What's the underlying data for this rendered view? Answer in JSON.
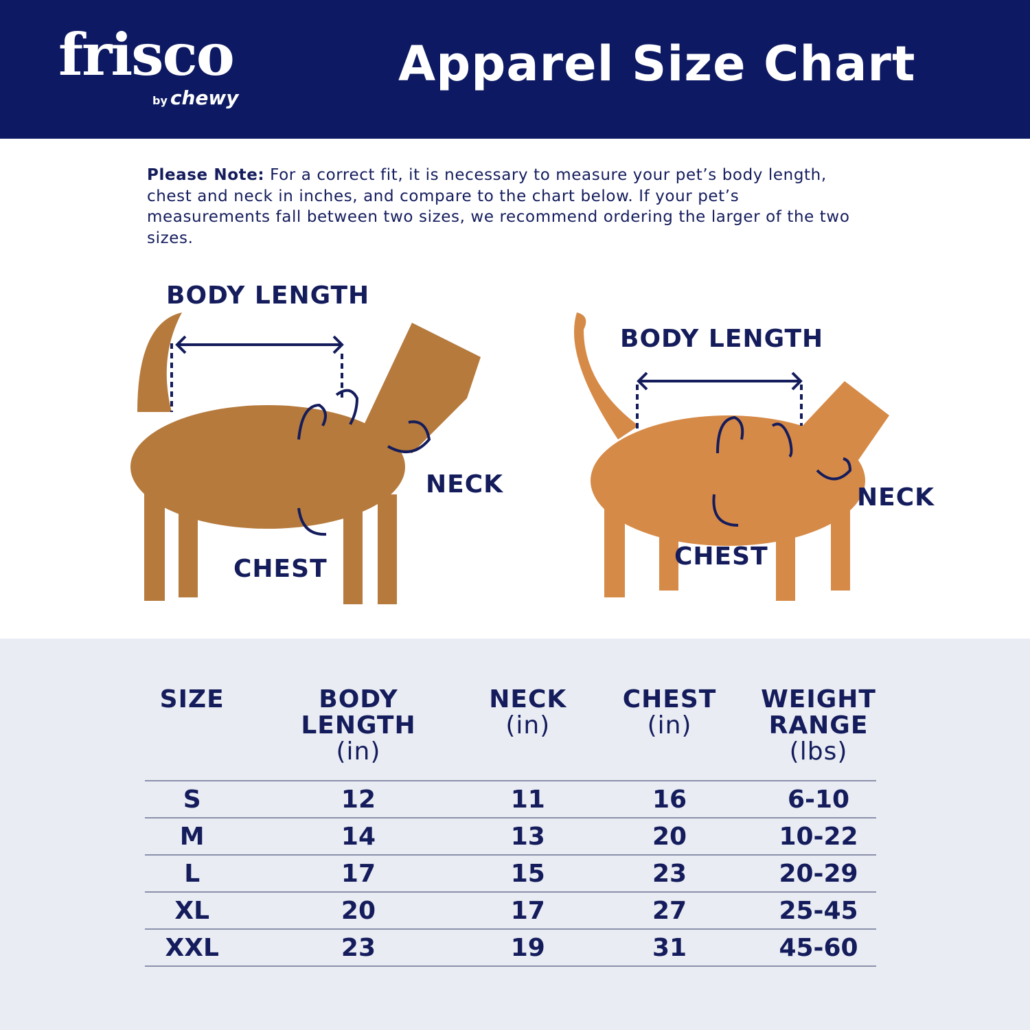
{
  "header": {
    "brand": "frisco",
    "sub_brand_prefix": "by",
    "sub_brand": "chewy",
    "title": "Apparel Size Chart",
    "bg_color": "#0d1a63"
  },
  "note": {
    "label": "Please Note:",
    "text": " For a correct fit, it is necessary to measure your pet’s body length, chest and neck in inches, and compare to the chart below. If your pet’s measurements fall between two sizes, we recommend ordering the larger of the two sizes."
  },
  "dog": {
    "body_length": "BODY LENGTH",
    "neck": "NECK",
    "chest": "CHEST"
  },
  "cat": {
    "body_length": "BODY LENGTH",
    "neck": "NECK",
    "chest": "CHEST"
  },
  "table": {
    "headers": [
      {
        "title": "SIZE",
        "unit": ""
      },
      {
        "title": "BODY LENGTH",
        "unit": "(in)"
      },
      {
        "title": "NECK",
        "unit": "(in)"
      },
      {
        "title": "CHEST",
        "unit": "(in)"
      },
      {
        "title": "WEIGHT RANGE",
        "unit": "(lbs)"
      }
    ],
    "rows": [
      [
        "S",
        "12",
        "11",
        "16",
        "6-10"
      ],
      [
        "M",
        "14",
        "13",
        "20",
        "10-22"
      ],
      [
        "L",
        "17",
        "15",
        "23",
        "20-29"
      ],
      [
        "XL",
        "20",
        "17",
        "27",
        "25-45"
      ],
      [
        "XXL",
        "23",
        "19",
        "31",
        "45-60"
      ]
    ]
  }
}
